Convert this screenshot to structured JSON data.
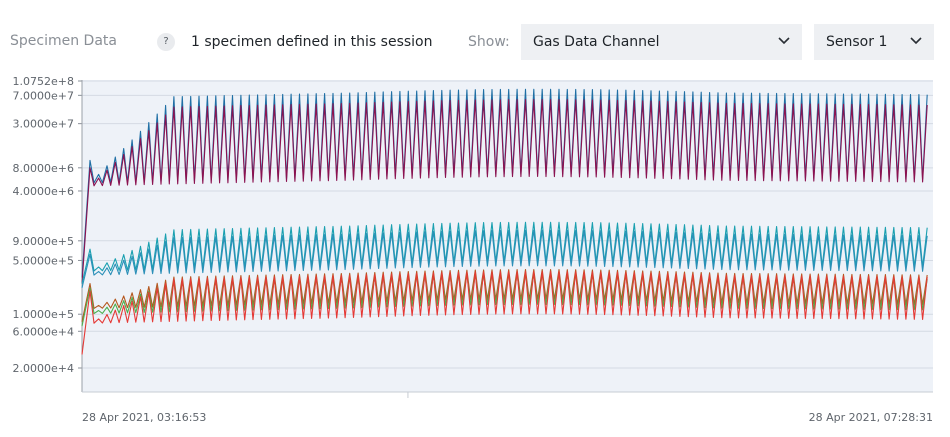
{
  "toolbar": {
    "section_title": "Specimen Data",
    "help_icon_glyph": "?",
    "session_text": "1 specimen defined in this session",
    "show_label": "Show:",
    "channel_dropdown": {
      "value": "Gas Data Channel",
      "icon": "chevron-down-icon"
    },
    "sensor_dropdown": {
      "value": "Sensor 1",
      "icon": "chevron-down-icon"
    }
  },
  "chart_data": {
    "type": "line",
    "yscale": "log",
    "grid": true,
    "legend": "none",
    "background": "#eef2f8",
    "y_ticks": [
      "1.0752e+8",
      "7.0000e+7",
      "3.0000e+7",
      "8.0000e+6",
      "4.0000e+6",
      "9.0000e+5",
      "5.0000e+5",
      "1.0000e+5",
      "6.0000e+4",
      "2.0000e+4"
    ],
    "y_tick_values": [
      107520000,
      70000000,
      30000000,
      8000000,
      4000000,
      900000,
      500000,
      100000,
      60000,
      20000
    ],
    "ylim": [
      8000,
      107520000
    ],
    "x_start_label": "28 Apr 2021, 03:16:53",
    "x_end_label": "28 Apr 2021, 07:28:31",
    "cycles": 100,
    "series": [
      {
        "color": "#1f6fa5",
        "low": 6000000,
        "high": 75000000,
        "start": 300000,
        "ramp_end": 10000000
      },
      {
        "color": "#8b1250",
        "low": 5500000,
        "high": 55000000,
        "start": 250000,
        "ramp_end": 8000000
      },
      {
        "color": "#1aa0b0",
        "low": 430000,
        "high": 1400000,
        "start": 250000,
        "ramp_end": 700000
      },
      {
        "color": "#2b8fb8",
        "low": 380000,
        "high": 1100000,
        "start": 220000,
        "ramp_end": 600000
      },
      {
        "color": "#b5581f",
        "low": 140000,
        "high": 340000,
        "start": 80000,
        "ramp_end": 250000
      },
      {
        "color": "#4caf50",
        "low": 120000,
        "high": 300000,
        "start": 70000,
        "ramp_end": 220000
      },
      {
        "color": "#e53935",
        "low": 90000,
        "high": 320000,
        "start": 30000,
        "ramp_end": 200000
      }
    ]
  }
}
